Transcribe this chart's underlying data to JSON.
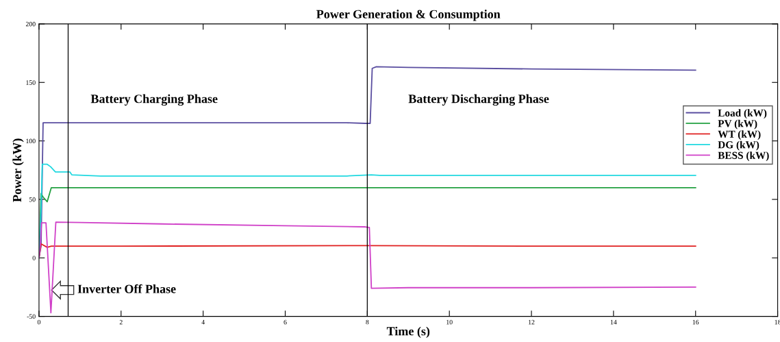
{
  "chart_data": {
    "type": "line",
    "title": "Power Generation & Consumption",
    "xlabel": "Time (s)",
    "ylabel": "Power (kW)",
    "xlim": [
      0,
      18
    ],
    "xticks": [
      0,
      2,
      4,
      6,
      8,
      10,
      12,
      14,
      16,
      18
    ],
    "ylim": [
      -50,
      200
    ],
    "yticks": [
      -50,
      0,
      50,
      100,
      150,
      200
    ],
    "grid": false,
    "legend": "right",
    "marker": "none",
    "line_style": "solid",
    "series": [
      {
        "name": "Load (kW)",
        "color": "#5a4ea0",
        "x": [
          0,
          0.05,
          0.1,
          2,
          5,
          7.5,
          7.95,
          8.07,
          8.12,
          8.22,
          9,
          12,
          16
        ],
        "values": [
          0,
          10,
          115.5,
          115.5,
          115.5,
          115.5,
          115,
          115,
          162,
          163.4,
          162.8,
          161.5,
          160.5
        ]
      },
      {
        "name": "PV (kW)",
        "color": "#22a040",
        "x": [
          0,
          0.05,
          0.1,
          0.2,
          0.3,
          2,
          8,
          12,
          16
        ],
        "values": [
          0,
          55,
          52,
          48,
          60,
          60,
          60,
          60,
          60
        ]
      },
      {
        "name": "WT (kW)",
        "color": "#e02020",
        "x": [
          0,
          0.05,
          0.1,
          0.2,
          0.3,
          2,
          8,
          12,
          16
        ],
        "values": [
          0,
          12,
          11,
          9,
          10,
          10,
          10.5,
          10,
          10
        ]
      },
      {
        "name": "DG (kW)",
        "color": "#20d8e0",
        "x": [
          0,
          0.05,
          0.08,
          0.2,
          0.28,
          0.4,
          0.75,
          0.8,
          1.5,
          4,
          7.5,
          8.1,
          8.3,
          12,
          16
        ],
        "values": [
          0,
          40,
          80,
          80,
          78,
          73.5,
          73.5,
          71,
          70,
          70,
          70,
          71,
          70.5,
          70.5,
          70.5
        ]
      },
      {
        "name": "BESS (kW)",
        "color": "#d040c8",
        "x": [
          0,
          0.03,
          0.06,
          0.17,
          0.29,
          0.41,
          1,
          3,
          6,
          7.95,
          8.05,
          8.1,
          9,
          12,
          16
        ],
        "values": [
          0,
          10,
          30,
          30,
          -47,
          30.5,
          30.3,
          29,
          27.5,
          26.5,
          26,
          -26,
          -25.5,
          -25.5,
          -25
        ]
      }
    ],
    "ref_lines": [
      {
        "axis": "x",
        "value": 0.71,
        "color": "#000000"
      },
      {
        "axis": "x",
        "value": 8,
        "color": "#000000"
      }
    ],
    "annotations": [
      "Battery Charging Phase",
      "Battery Discharging Phase",
      "Inverter Off Phase"
    ]
  }
}
